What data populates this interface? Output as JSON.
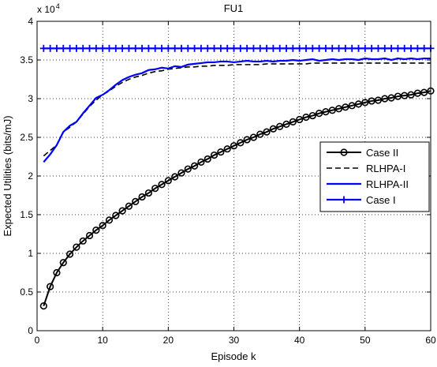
{
  "chart_data": {
    "type": "line",
    "title": "FU1",
    "xlabel": "Episode k",
    "ylabel": "Expected Utilities (bits/mJ)",
    "y_multiplier_label": "x 10",
    "y_multiplier_exponent": "4",
    "xlim": [
      0,
      60
    ],
    "ylim": [
      0,
      4
    ],
    "xticks": [
      0,
      10,
      20,
      30,
      40,
      50,
      60
    ],
    "xtick_labels": [
      "0",
      "10",
      "20",
      "30",
      "40",
      "50",
      "60"
    ],
    "yticks": [
      0,
      0.5,
      1,
      1.5,
      2,
      2.5,
      3,
      3.5,
      4
    ],
    "ytick_labels": [
      "0",
      "0.5",
      "1",
      "1.5",
      "2",
      "2.5",
      "3",
      "3.5",
      "4"
    ],
    "grid": true,
    "legend_position": "center-right",
    "x": [
      1,
      2,
      3,
      4,
      5,
      6,
      7,
      8,
      9,
      10,
      11,
      12,
      13,
      14,
      15,
      16,
      17,
      18,
      19,
      20,
      21,
      22,
      23,
      24,
      25,
      26,
      27,
      28,
      29,
      30,
      31,
      32,
      33,
      34,
      35,
      36,
      37,
      38,
      39,
      40,
      41,
      42,
      43,
      44,
      45,
      46,
      47,
      48,
      49,
      50,
      51,
      52,
      53,
      54,
      55,
      56,
      57,
      58,
      59,
      60
    ],
    "series": [
      {
        "name": "Case II",
        "color": "#000000",
        "style": "solid",
        "marker": "circle",
        "values": [
          0.32,
          0.57,
          0.75,
          0.88,
          0.99,
          1.08,
          1.16,
          1.23,
          1.3,
          1.36,
          1.43,
          1.49,
          1.55,
          1.61,
          1.67,
          1.73,
          1.78,
          1.84,
          1.89,
          1.94,
          1.99,
          2.04,
          2.09,
          2.13,
          2.18,
          2.22,
          2.27,
          2.31,
          2.35,
          2.39,
          2.43,
          2.47,
          2.5,
          2.54,
          2.57,
          2.61,
          2.64,
          2.67,
          2.7,
          2.73,
          2.76,
          2.78,
          2.81,
          2.83,
          2.85,
          2.87,
          2.89,
          2.91,
          2.93,
          2.95,
          2.97,
          2.98,
          3.0,
          3.01,
          3.03,
          3.04,
          3.05,
          3.07,
          3.08,
          3.1
        ]
      },
      {
        "name": "RLHPA-I",
        "color": "#000000",
        "style": "dashed",
        "marker": "none",
        "values": [
          2.26,
          2.33,
          2.4,
          2.57,
          2.63,
          2.7,
          2.8,
          2.9,
          2.98,
          3.05,
          3.1,
          3.16,
          3.21,
          3.25,
          3.28,
          3.3,
          3.33,
          3.35,
          3.36,
          3.38,
          3.39,
          3.4,
          3.41,
          3.41,
          3.42,
          3.42,
          3.43,
          3.43,
          3.43,
          3.44,
          3.44,
          3.44,
          3.44,
          3.44,
          3.45,
          3.45,
          3.45,
          3.45,
          3.45,
          3.45,
          3.45,
          3.46,
          3.46,
          3.46,
          3.46,
          3.46,
          3.46,
          3.46,
          3.46,
          3.46,
          3.46,
          3.46,
          3.46,
          3.46,
          3.46,
          3.46,
          3.46,
          3.46,
          3.46,
          3.46
        ]
      },
      {
        "name": "RLHPA-II",
        "color": "#0000ff",
        "style": "solid",
        "marker": "none",
        "values": [
          2.18,
          2.28,
          2.4,
          2.57,
          2.65,
          2.7,
          2.81,
          2.91,
          3.01,
          3.05,
          3.11,
          3.18,
          3.24,
          3.28,
          3.31,
          3.33,
          3.37,
          3.38,
          3.4,
          3.39,
          3.42,
          3.41,
          3.44,
          3.45,
          3.46,
          3.47,
          3.47,
          3.48,
          3.48,
          3.47,
          3.48,
          3.49,
          3.48,
          3.48,
          3.49,
          3.48,
          3.49,
          3.49,
          3.5,
          3.49,
          3.5,
          3.51,
          3.49,
          3.5,
          3.51,
          3.5,
          3.51,
          3.51,
          3.5,
          3.52,
          3.51,
          3.51,
          3.52,
          3.5,
          3.52,
          3.51,
          3.52,
          3.51,
          3.52,
          3.52
        ]
      },
      {
        "name": "Case I",
        "color": "#0000ff",
        "style": "solid",
        "marker": "plus",
        "values": [
          3.65,
          3.65,
          3.65,
          3.65,
          3.65,
          3.65,
          3.65,
          3.65,
          3.65,
          3.65,
          3.65,
          3.65,
          3.65,
          3.65,
          3.65,
          3.65,
          3.65,
          3.65,
          3.65,
          3.65,
          3.65,
          3.65,
          3.65,
          3.65,
          3.65,
          3.65,
          3.65,
          3.65,
          3.65,
          3.65,
          3.65,
          3.65,
          3.65,
          3.65,
          3.65,
          3.65,
          3.65,
          3.65,
          3.65,
          3.65,
          3.65,
          3.65,
          3.65,
          3.65,
          3.65,
          3.65,
          3.65,
          3.65,
          3.65,
          3.65,
          3.65,
          3.65,
          3.65,
          3.65,
          3.65,
          3.65,
          3.65,
          3.65,
          3.65,
          3.65
        ]
      }
    ]
  }
}
